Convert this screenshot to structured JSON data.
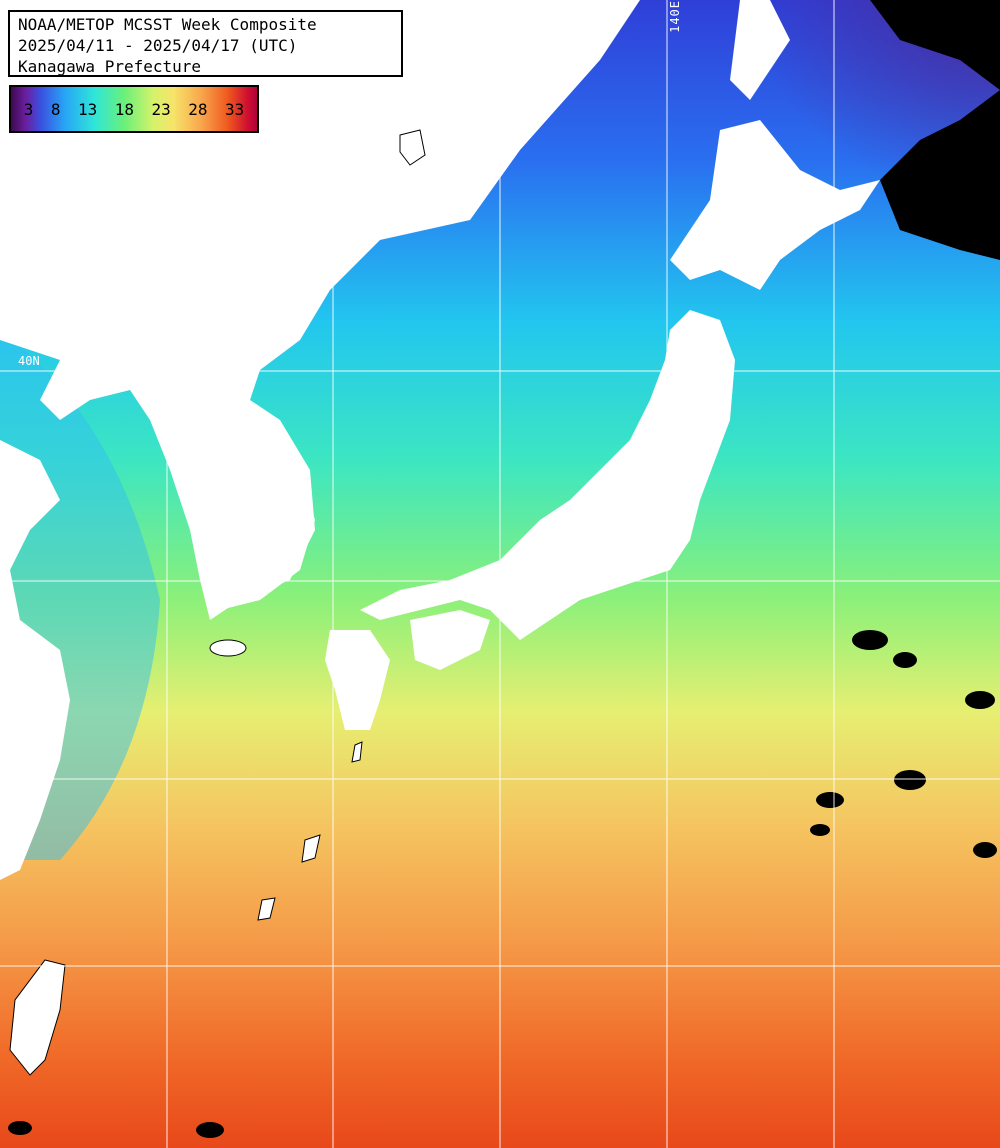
{
  "title": {
    "line1": "NOAA/METOP MCSST Week Composite",
    "line2": "2025/04/11 - 2025/04/17 (UTC)",
    "line3": "Kanagawa Prefecture"
  },
  "legend": {
    "ticks": [
      "3",
      "8",
      "13",
      "18",
      "23",
      "28",
      "33"
    ],
    "colors": [
      "#3d0a4e",
      "#3b4fe0",
      "#27a6f5",
      "#2fe6d8",
      "#6af07a",
      "#f7e46a",
      "#f8a24a",
      "#ef5a1f",
      "#d01030"
    ]
  },
  "grid_labels": {
    "lon_140e": "140E",
    "lat_40n": "40N"
  },
  "colors": {
    "land": "#ffffff",
    "grid": "#ffffff",
    "cloud_mask": "#000000"
  }
}
